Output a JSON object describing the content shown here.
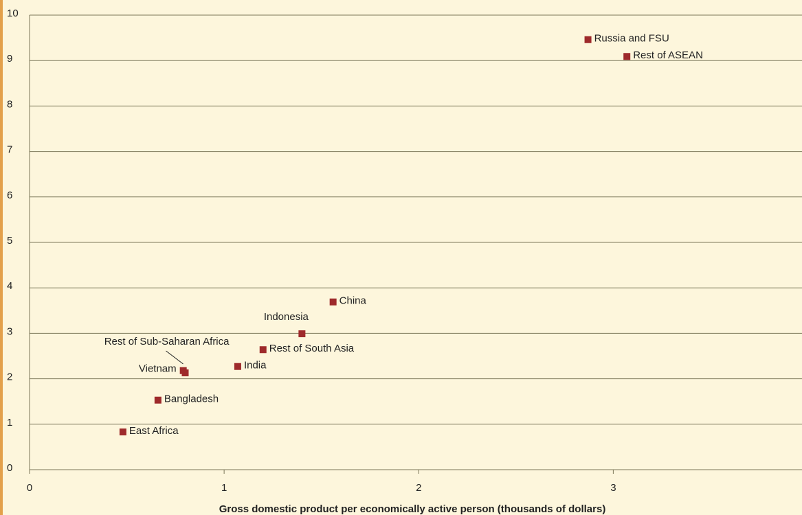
{
  "chart_data": {
    "type": "scatter",
    "x_label": "Gross domestic product per economically active person (thousands of dollars)",
    "series": [
      {
        "color": "#9e2a2b",
        "labels": [
          "Russia and FSU",
          "Rest of ASEAN",
          "China",
          "Indonesia",
          "Rest of South Asia",
          "India",
          "Vietnam",
          "Rest of Sub-Saharan Africa",
          "Bangladesh",
          "East Africa"
        ],
        "x": [
          2.87,
          3.07,
          1.56,
          1.4,
          1.2,
          1.07,
          0.79,
          0.8,
          0.66,
          0.48
        ],
        "values": [
          9.46,
          9.09,
          3.69,
          2.99,
          2.64,
          2.27,
          2.18,
          2.13,
          1.53,
          0.83
        ]
      }
    ],
    "xlim": [
      0,
      3.97
    ],
    "xticks": [
      0,
      1,
      2,
      3
    ],
    "ylim": [
      0,
      10
    ],
    "yticks": [
      0,
      1,
      2,
      3,
      4,
      5,
      6,
      7,
      8,
      9,
      10
    ],
    "grid": true
  }
}
